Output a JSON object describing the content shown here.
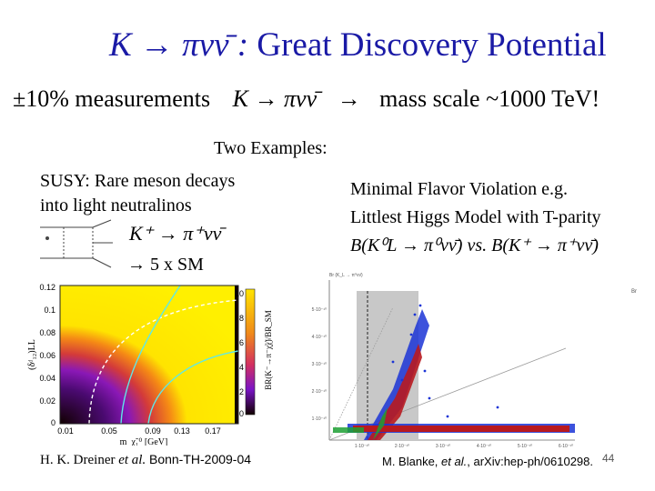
{
  "title": {
    "math": "K → πνν̄ :",
    "text": "Great Discovery Potential"
  },
  "measurement": {
    "prefix": "±10% measurements",
    "math": "K → πνν̄",
    "arrow": "→",
    "suffix": "mass scale ~1000 TeV!"
  },
  "examples_heading": "Two Examples:",
  "susy": {
    "line1": "SUSY: Rare meson decays",
    "line2": "into light neutralinos",
    "decay": "K⁺ → π⁺νν̄",
    "enhancement": "→ 5 x SM",
    "citation_authors": "H. K. Dreiner",
    "citation_etal": "et al.",
    "citation_ref": "Bonn-TH-2009-04"
  },
  "mfv": {
    "line1": "Minimal Flavor Violation e.g.",
    "line2": "Littlest Higgs Model with T-parity",
    "formula": "B(K⁰L → π⁰νν̄) vs. B(K⁺ → π⁺νν̄)",
    "citation_authors": "M. Blanke,",
    "citation_etal": "et al.",
    "citation_ref": ", arXiv:hep-ph/0610298."
  },
  "page_number": "44",
  "plot_left": {
    "y_ticks": [
      "0.12",
      "0.1",
      "0.08",
      "0.06",
      "0.04",
      "0.02",
      "0"
    ],
    "x_ticks": [
      "0.01",
      "0.05",
      "0.09",
      "0.13",
      "0.17"
    ],
    "y_axis_label": "(δᵈ₁₂)LL",
    "x_axis_label": "m_χ̃₁⁰ [GeV]",
    "colorbar_ticks": [
      "10",
      "8",
      "6",
      "4",
      "2",
      "0"
    ],
    "colorbar_label": "BR(K⁻→π⁻χ̃χ̃)/BR_SM"
  },
  "plot_right": {
    "y_axis_label": "Br (K_L → π⁰νν̄)",
    "x_axis_label": "Br",
    "y_ticks": [
      "5·10⁻¹⁰",
      "4·10⁻¹⁰",
      "3·10⁻¹⁰",
      "2·10⁻¹⁰",
      "1·10⁻¹⁰"
    ],
    "x_ticks": [
      "1·10⁻¹⁰",
      "2·10⁻¹⁰",
      "3·10⁻¹⁰",
      "4·10⁻¹⁰",
      "5·10⁻¹⁰",
      "6·10⁻¹⁰"
    ]
  },
  "colors": {
    "title": "#1a1aa6",
    "heat_yellow": "#ffe400",
    "heat_orange": "#e24d1e",
    "heat_purple": "#6f14c6",
    "heat_black": "#110000",
    "scatter_red": "#b8191f",
    "scatter_blue": "#1b34d6",
    "scatter_green": "#1da034"
  }
}
